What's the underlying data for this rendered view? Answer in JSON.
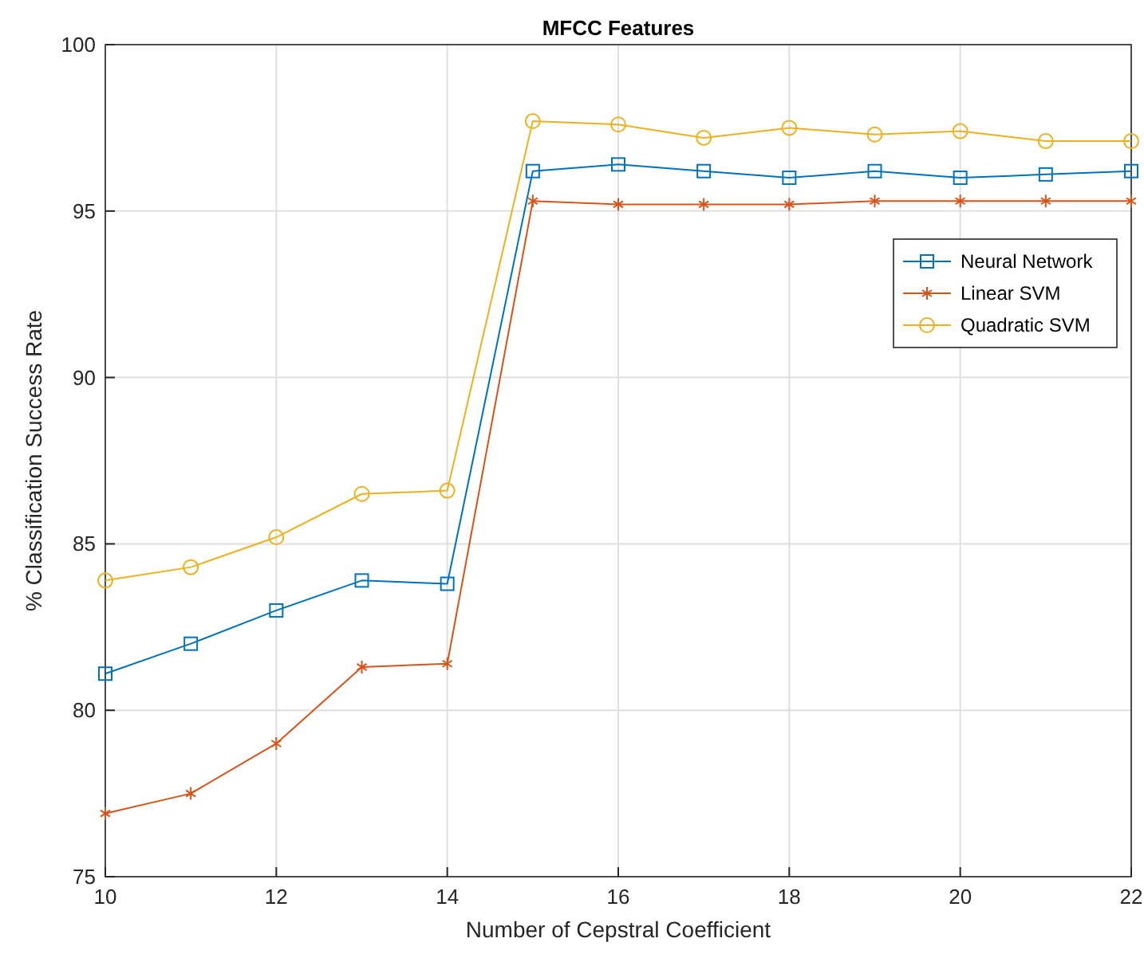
{
  "chart_data": {
    "type": "line",
    "title": "MFCC Features",
    "xlabel": "Number of Cepstral Coefficient",
    "ylabel": "% Classification Success Rate",
    "x": [
      10,
      11,
      12,
      13,
      14,
      15,
      16,
      17,
      18,
      19,
      20,
      21,
      22
    ],
    "series": [
      {
        "name": "Neural Network",
        "color": "#0072bd",
        "marker": "square",
        "values": [
          81.1,
          82.0,
          83.0,
          83.9,
          83.8,
          96.2,
          96.4,
          96.2,
          96.0,
          96.2,
          96.0,
          96.1,
          96.2
        ]
      },
      {
        "name": "Linear SVM",
        "color": "#d95319",
        "marker": "cross",
        "values": [
          76.9,
          77.5,
          79.0,
          81.3,
          81.4,
          95.3,
          95.2,
          95.2,
          95.2,
          95.3,
          95.3,
          95.3,
          95.3
        ]
      },
      {
        "name": "Quadratic SVM",
        "color": "#edb120",
        "marker": "circle",
        "values": [
          83.9,
          84.3,
          85.2,
          86.5,
          86.6,
          97.7,
          97.6,
          97.2,
          97.5,
          97.3,
          97.4,
          97.1,
          97.1
        ]
      }
    ],
    "xlim": [
      10,
      22
    ],
    "xticks": [
      10,
      12,
      14,
      16,
      18,
      20,
      22
    ],
    "ylim": [
      75,
      100
    ],
    "yticks": [
      75,
      80,
      85,
      90,
      95,
      100
    ],
    "grid": true,
    "legend": "right",
    "line_style": "solid"
  }
}
